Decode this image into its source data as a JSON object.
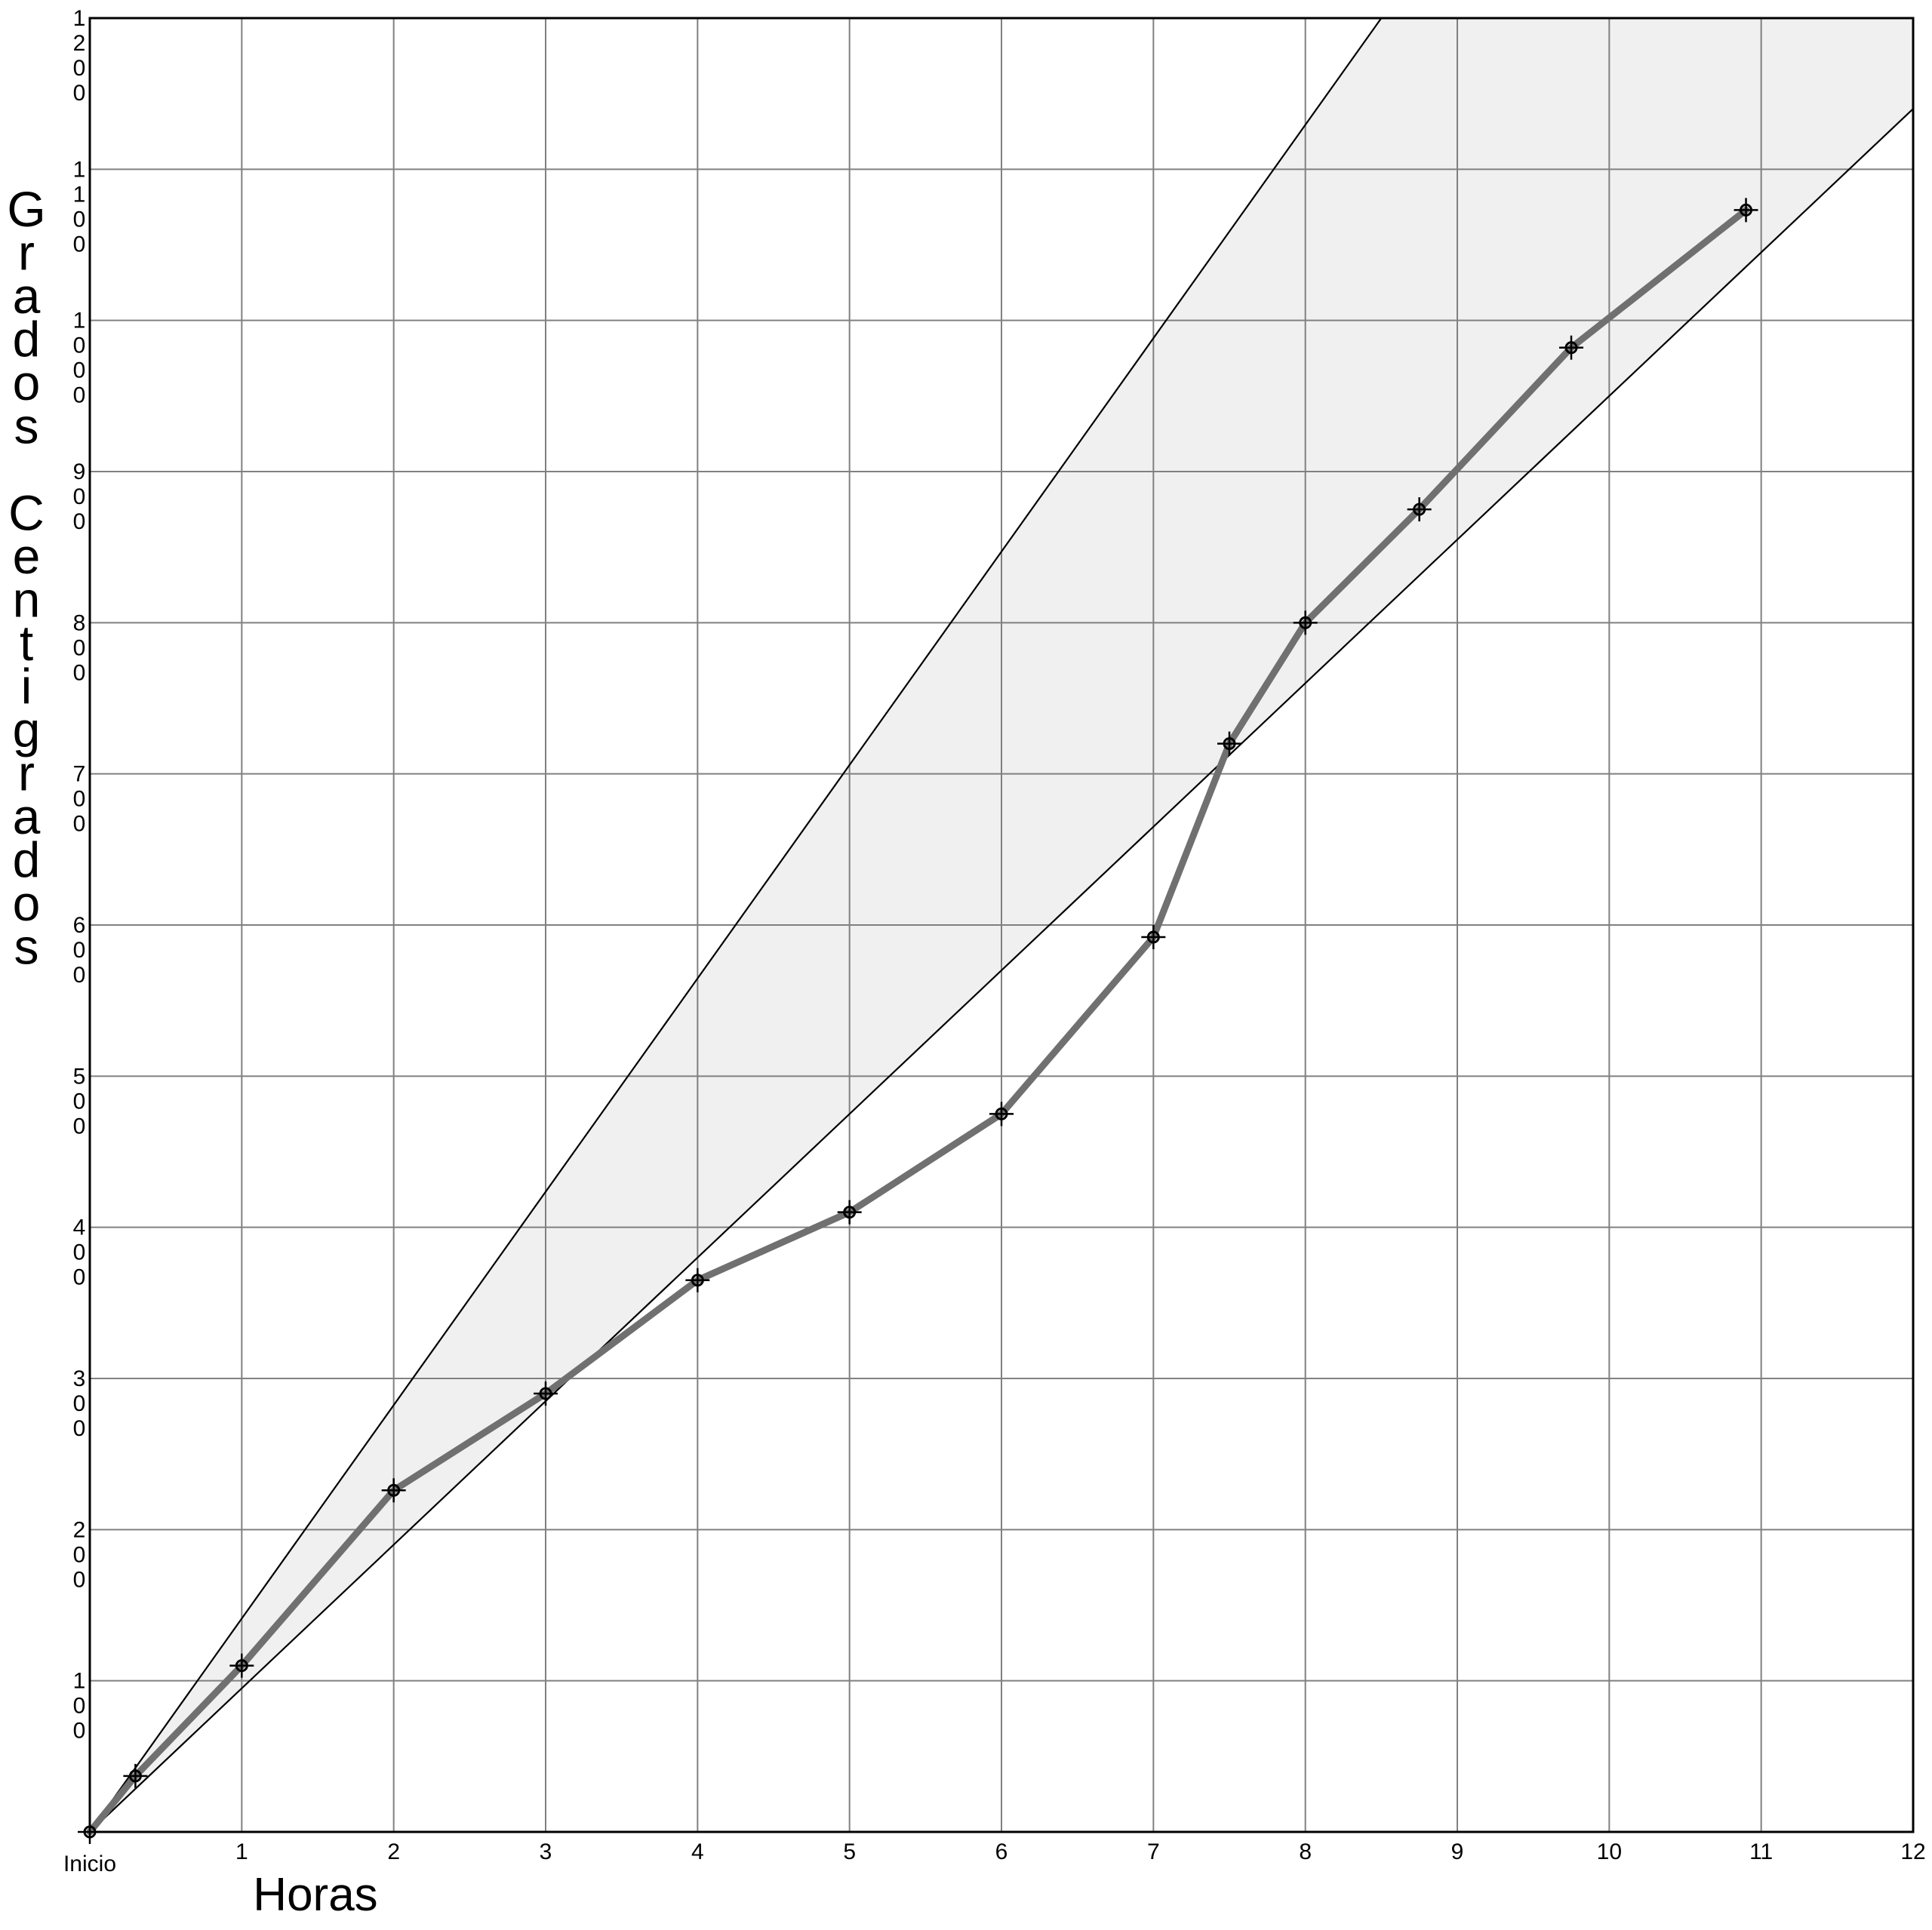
{
  "chart_data": {
    "type": "line",
    "xlabel": "Horas",
    "ylabel": "Grados Centigrados",
    "x_tick_labels": [
      "Inicio",
      "1",
      "2",
      "3",
      "4",
      "5",
      "6",
      "7",
      "8",
      "9",
      "10",
      "11",
      "12"
    ],
    "y_tick_labels": [
      "100",
      "200",
      "300",
      "400",
      "500",
      "600",
      "700",
      "800",
      "900",
      "1000",
      "1100",
      "1200"
    ],
    "xlim": [
      0,
      12
    ],
    "ylim": [
      0,
      1200
    ],
    "grid": true,
    "series": [
      {
        "x": [
          0,
          0.3,
          1,
          2,
          3,
          4,
          5,
          6,
          7,
          7.5,
          8,
          8.75,
          9.75,
          10.9
        ],
        "y": [
          0,
          37,
          110,
          226,
          290,
          365,
          410,
          475,
          592,
          720,
          800,
          875,
          982,
          1073
        ]
      }
    ],
    "band": {
      "upper": {
        "x": [
          0,
          8.5
        ],
        "y": [
          0,
          1200
        ]
      },
      "lower": {
        "x": [
          0,
          12
        ],
        "y": [
          0,
          1140
        ]
      }
    },
    "colors": {
      "series_line": "#707070",
      "band_fill": "#f0f0f0",
      "grid": "#808080",
      "axis": "#000000"
    }
  }
}
